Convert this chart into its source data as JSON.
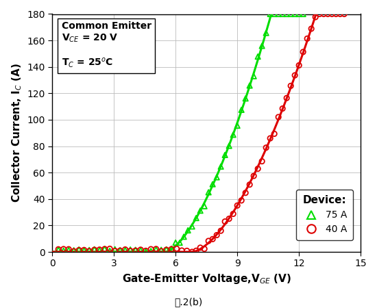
{
  "xlabel": "Gate-Emitter Voltage,V$_{GE}$ (V)",
  "ylabel": "Collector Current, I$_C$ (A)",
  "xlim": [
    0,
    15
  ],
  "ylim": [
    0,
    180
  ],
  "xticks": [
    0,
    3,
    6,
    9,
    12,
    15
  ],
  "yticks": [
    0,
    20,
    40,
    60,
    80,
    100,
    120,
    140,
    160,
    180
  ],
  "green_color": "#00DD00",
  "red_color": "#DD0000",
  "legend_title": "Device:",
  "legend_75A": "75 A",
  "legend_40A": "40 A",
  "fig_label": "图.2(b)",
  "background_color": "#FFFFFF",
  "plot_bg_color": "#FFFFFF",
  "grid_color": "#BBBBBB",
  "green_vth": 5.5,
  "green_k": 13.5,
  "green_n": 1.58,
  "red_vth": 6.8,
  "red_k": 9.8,
  "red_n": 1.62,
  "ann_text_line1": "Common Emitter",
  "ann_text_line2": "V$_{CE}$ = 20 V",
  "ann_text_line3": "T$_C$ = 25$^o$C"
}
